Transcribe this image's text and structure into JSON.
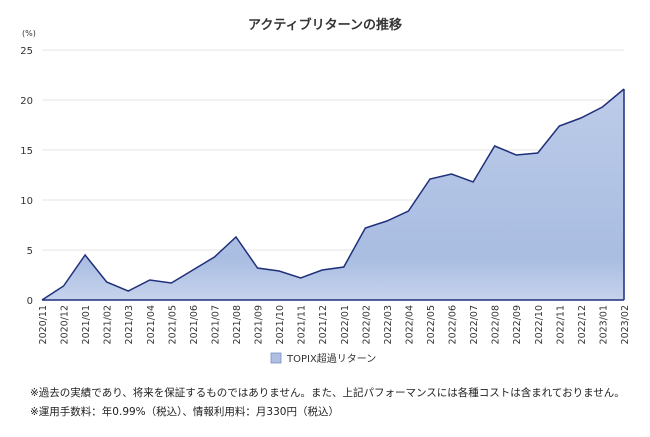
{
  "chart_data": {
    "type": "area",
    "title": "アクティブリターンの推移",
    "ylabel": "(%)",
    "xlabel": "",
    "ylim": [
      0,
      25
    ],
    "yticks": [
      0,
      5,
      10,
      15,
      20,
      25
    ],
    "grid": true,
    "legend_position": "bottom",
    "categories": [
      "2020/11",
      "2020/12",
      "2021/01",
      "2021/02",
      "2021/03",
      "2021/04",
      "2021/05",
      "2021/06",
      "2021/07",
      "2021/08",
      "2021/09",
      "2021/10",
      "2021/11",
      "2021/12",
      "2022/01",
      "2022/02",
      "2022/03",
      "2022/04",
      "2022/05",
      "2022/06",
      "2022/07",
      "2022/08",
      "2022/09",
      "2022/10",
      "2022/11",
      "2022/12",
      "2023/01",
      "2023/02"
    ],
    "series": [
      {
        "name": "TOPIX超過リターン",
        "values": [
          0,
          1.4,
          4.5,
          1.8,
          0.9,
          2.0,
          1.7,
          3.0,
          4.3,
          6.3,
          3.2,
          2.9,
          2.2,
          3.0,
          3.3,
          7.2,
          7.9,
          8.9,
          12.1,
          12.6,
          11.8,
          15.4,
          14.5,
          14.7,
          17.4,
          18.2,
          19.3,
          21.1
        ],
        "line_color": "#1f2f7a",
        "fill_color": "#b3c5e6"
      }
    ]
  },
  "notes": [
    "※過去の実績であり、将来を保証するものではありません。また、上記パフォーマンスには各種コストは含まれておりません。",
    "※運用手数料：年0.99%（税込）、情報利用料：月330円（税込）"
  ]
}
